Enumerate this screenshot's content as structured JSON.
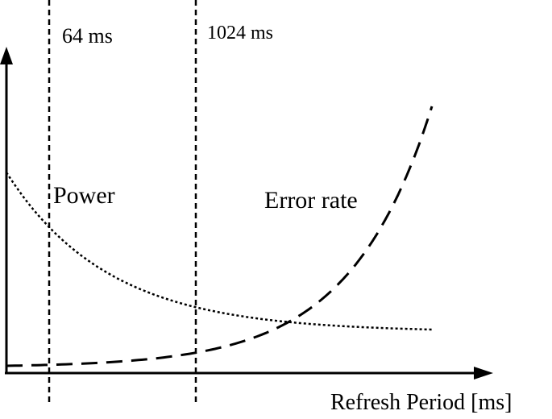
{
  "chart_data": {
    "type": "line",
    "title": "",
    "xlabel": "Refresh Period [ms]",
    "ylabel": "",
    "grid": false,
    "legend": "none",
    "markers": [
      {
        "label": "64 ms",
        "style": "dashed"
      },
      {
        "label": "1024 ms",
        "style": "dashed"
      }
    ],
    "series": [
      {
        "name": "Power",
        "line_style": "dotted",
        "trend": "decreasing, convex, flattening toward the right"
      },
      {
        "name": "Error rate",
        "line_style": "dashed",
        "trend": "increasing, exponential, rising steeply at the right"
      }
    ]
  }
}
